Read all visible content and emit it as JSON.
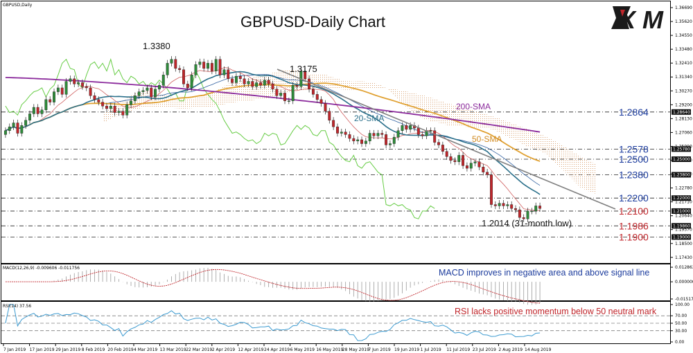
{
  "window_label": "GBPUSD,Daily",
  "title": "GBPUSD-Daily Chart",
  "logo_text": "XM",
  "colors": {
    "bull": "#2e8b3a",
    "bear": "#c0262b",
    "sma20": "#2a6f8a",
    "sma50": "#e0a030",
    "sma200": "#8b2a9c",
    "cloud": "#d8a070",
    "chikou": "#66cc44",
    "tenkan": "#d06060",
    "kijun": "#3060a0",
    "level_blue": "#1a3a9c",
    "level_red": "#c0262b",
    "trend": "#7f7f7f"
  },
  "chart_data": [
    {
      "type": "candlestick",
      "title": "GBPUSD-Daily Chart",
      "ylim": [
        1.1742,
        1.3669
      ],
      "price_axis_ticks": [
        "1.36690",
        "1.35620",
        "1.34550",
        "1.33480",
        "1.32410",
        "1.31340",
        "1.30270",
        "1.29200",
        "1.28130",
        "1.27060",
        "1.25990",
        "1.24920",
        "1.23850",
        "1.22780",
        "1.21710",
        "1.20640",
        "1.19570",
        "1.18500",
        "1.17430"
      ],
      "axis_markers": [
        "1.28640",
        "1.25780",
        "1.25000",
        "1.23800",
        "1.22000",
        "1.21000",
        "1.19860",
        "1.19000"
      ],
      "x_labels": [
        "7 Jan 2019",
        "17 Jan 2019",
        "29 Jan 2019",
        "8 Feb 2019",
        "20 Feb 2019",
        "4 Mar 2019",
        "13 Mar 2019",
        "22 Mar 2019",
        "2 Apr 2019",
        "12 Apr 2019",
        "24 Apr 2019",
        "6 May 2019",
        "16 May 2019",
        "28 May 2019",
        "7 Jun 2019",
        "19 Jun 2019",
        "1 Jul 2019",
        "11 Jul 2019",
        "23 Jul 2019",
        "2 Aug 2019",
        "14 Aug 2019"
      ],
      "levels": [
        {
          "value": 1.2864,
          "label": "1.2864",
          "color": "blue"
        },
        {
          "value": 1.2578,
          "label": "1.2578",
          "color": "blue"
        },
        {
          "value": 1.25,
          "label": "1.2500",
          "color": "blue"
        },
        {
          "value": 1.238,
          "label": "1.2380",
          "color": "blue"
        },
        {
          "value": 1.22,
          "label": "1.2200",
          "color": "blue"
        },
        {
          "value": 1.21,
          "label": "1.2100",
          "color": "red"
        },
        {
          "value": 1.1986,
          "label": "1.1986",
          "color": "red"
        },
        {
          "value": 1.19,
          "label": "1.1900",
          "color": "red"
        }
      ],
      "annotations": {
        "high1": {
          "text": "1.3380",
          "value": 1.338
        },
        "high2": {
          "text": "1.3175",
          "value": 1.3175
        },
        "low": {
          "text": "1.2014 (31-month low)",
          "value": 1.2014
        }
      },
      "ma_labels": {
        "sma20": "20-SMA",
        "sma50": "50-SMA",
        "sma200": "200-SMA"
      },
      "closes": [
        1.272,
        1.275,
        1.278,
        1.27,
        1.276,
        1.28,
        1.285,
        1.29,
        1.285,
        1.288,
        1.296,
        1.294,
        1.302,
        1.305,
        1.3,
        1.31,
        1.312,
        1.308,
        1.309,
        1.306,
        1.305,
        1.299,
        1.296,
        1.294,
        1.291,
        1.289,
        1.291,
        1.286,
        1.287,
        1.284,
        1.292,
        1.295,
        1.299,
        1.302,
        1.303,
        1.305,
        1.298,
        1.304,
        1.307,
        1.315,
        1.324,
        1.327,
        1.32,
        1.319,
        1.308,
        1.305,
        1.315,
        1.323,
        1.325,
        1.32,
        1.324,
        1.318,
        1.327,
        1.315,
        1.319,
        1.312,
        1.309,
        1.314,
        1.312,
        1.308,
        1.31,
        1.306,
        1.309,
        1.307,
        1.311,
        1.308,
        1.304,
        1.299,
        1.301,
        1.295,
        1.295,
        1.307,
        1.306,
        1.318,
        1.312,
        1.304,
        1.3,
        1.296,
        1.293,
        1.287,
        1.28,
        1.275,
        1.27,
        1.271,
        1.269,
        1.266,
        1.264,
        1.265,
        1.262,
        1.264,
        1.27,
        1.268,
        1.27,
        1.269,
        1.261,
        1.262,
        1.267,
        1.272,
        1.276,
        1.273,
        1.276,
        1.274,
        1.269,
        1.268,
        1.272,
        1.272,
        1.263,
        1.261,
        1.256,
        1.252,
        1.249,
        1.248,
        1.253,
        1.245,
        1.243,
        1.247,
        1.248,
        1.244,
        1.24,
        1.238,
        1.215,
        1.214,
        1.216,
        1.214,
        1.215,
        1.212,
        1.211,
        1.205,
        1.204,
        1.21,
        1.21,
        1.214,
        1.212
      ]
    },
    {
      "type": "macd",
      "label": "MACD(12,26,9) -0.009606 -0.011756",
      "ylim": [
        -0.0152,
        0.0129
      ],
      "axis_ticks": [
        "0.012863",
        "0.000000",
        "-0.015171"
      ],
      "annotation": "MACD improves in negative area and above signal line"
    },
    {
      "type": "rsi",
      "label": "RSI(14) 37.56",
      "ylim": [
        0,
        100
      ],
      "levels": [
        30,
        50,
        70
      ],
      "axis_ticks": [
        "100.00",
        "70.00",
        "50.00",
        "30.00",
        "0.00"
      ],
      "annotation": "RSI lacks positive momentum below 50 neutral mark"
    }
  ]
}
